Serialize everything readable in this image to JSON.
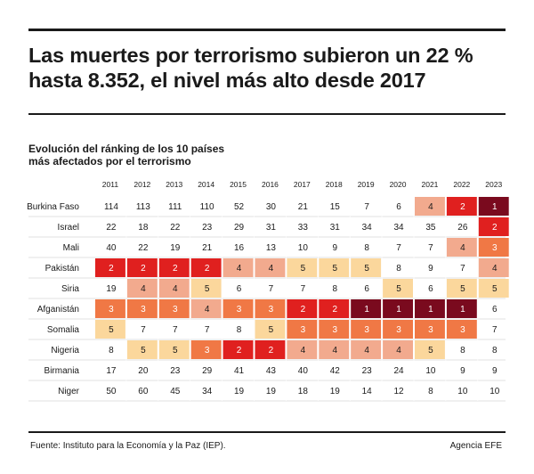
{
  "header": {
    "title": "Las muertes por terrorismo subieron un 22 % hasta 8.352, el nivel más alto desde 2017"
  },
  "subtitle": {
    "line1": "Evolución del ránking de los 10 países",
    "line2": "más afectados por el terrorismo"
  },
  "footer": {
    "source": "Fuente: Instituto para la Economía y la Paz (IEP).",
    "credit": "Agencia EFE"
  },
  "colors": {
    "rank1": "#7a0a1e",
    "rank2": "#e0201f",
    "rank3": "#f07845",
    "rank4": "#f2aa8e",
    "rank5": "#fbd79c",
    "other": "#ffffff",
    "grid": "#d9d9d9"
  },
  "chart_data": {
    "type": "heatmap",
    "title": "Evolución del ránking de los 10 países más afectados por el terrorismo",
    "x": [
      "2011",
      "2012",
      "2013",
      "2014",
      "2015",
      "2016",
      "2017",
      "2018",
      "2019",
      "2020",
      "2021",
      "2022",
      "2023"
    ],
    "rows": [
      "Burkina Faso",
      "Israel",
      "Mali",
      "Pakistán",
      "Siria",
      "Afganistán",
      "Somalia",
      "Nigeria",
      "Birmania",
      "Niger"
    ],
    "values": [
      [
        114,
        113,
        111,
        110,
        52,
        30,
        21,
        15,
        7,
        6,
        4,
        2,
        1
      ],
      [
        22,
        18,
        22,
        23,
        29,
        31,
        33,
        31,
        34,
        34,
        35,
        26,
        2
      ],
      [
        40,
        22,
        19,
        21,
        16,
        13,
        10,
        9,
        8,
        7,
        7,
        4,
        3
      ],
      [
        2,
        2,
        2,
        2,
        4,
        4,
        5,
        5,
        5,
        8,
        9,
        7,
        4
      ],
      [
        19,
        4,
        4,
        5,
        6,
        7,
        7,
        8,
        6,
        5,
        6,
        5,
        5
      ],
      [
        3,
        3,
        3,
        4,
        3,
        3,
        2,
        2,
        1,
        1,
        1,
        1,
        6
      ],
      [
        5,
        7,
        7,
        7,
        8,
        5,
        3,
        3,
        3,
        3,
        3,
        3,
        7
      ],
      [
        8,
        5,
        5,
        3,
        2,
        2,
        4,
        4,
        4,
        4,
        5,
        8,
        8
      ],
      [
        17,
        20,
        23,
        29,
        41,
        43,
        40,
        42,
        23,
        24,
        10,
        9,
        9
      ],
      [
        50,
        60,
        45,
        34,
        19,
        19,
        18,
        19,
        14,
        12,
        8,
        10,
        10
      ]
    ]
  }
}
